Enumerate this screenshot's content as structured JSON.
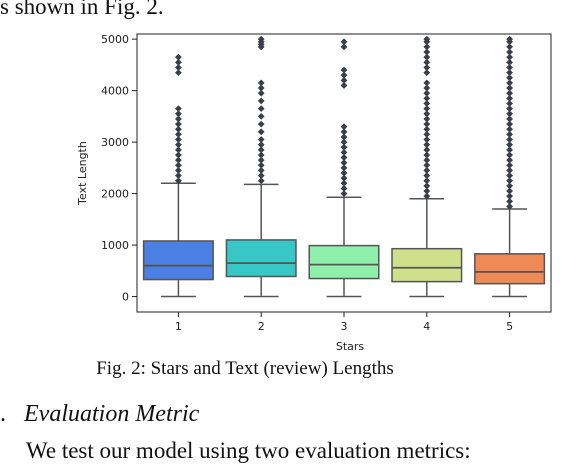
{
  "paper": {
    "top_text": "s shown in Fig. 2.",
    "caption": "Fig. 2: Stars and Text (review) Lengths",
    "section_number": ".",
    "section_title": "Evaluation Metric",
    "bottom_text": "We test our model using two evaluation metrics:"
  },
  "chart_data": {
    "type": "box",
    "xlabel": "Stars",
    "ylabel": "Text Length",
    "categories": [
      "1",
      "2",
      "3",
      "4",
      "5"
    ],
    "ylim": [
      -300,
      5100
    ],
    "yticks": [
      0,
      1000,
      2000,
      3000,
      4000,
      5000
    ],
    "grid": false,
    "colors": [
      "#4a7fe3",
      "#37c7c6",
      "#8ff0ac",
      "#cfe08c",
      "#ef8a56"
    ],
    "boxes": [
      {
        "whisker_low": 0,
        "q1": 330,
        "median": 600,
        "q3": 1080,
        "whisker_high": 2200,
        "outliers": [
          2250,
          2350,
          2450,
          2550,
          2650,
          2750,
          2850,
          2950,
          3050,
          3150,
          3250,
          3350,
          3450,
          3550,
          3650,
          4350,
          4450,
          4550,
          4650
        ]
      },
      {
        "whisker_low": 0,
        "q1": 390,
        "median": 650,
        "q3": 1100,
        "whisker_high": 2180,
        "outliers": [
          2250,
          2350,
          2450,
          2550,
          2650,
          2750,
          2850,
          2950,
          3050,
          3200,
          3350,
          3500,
          3650,
          3800,
          3950,
          4050,
          4150,
          4850,
          4900,
          4950,
          5000
        ]
      },
      {
        "whisker_low": 0,
        "q1": 350,
        "median": 620,
        "q3": 990,
        "whisker_high": 1930,
        "outliers": [
          2000,
          2100,
          2200,
          2300,
          2400,
          2500,
          2600,
          2700,
          2800,
          2900,
          3000,
          3100,
          3200,
          3300,
          4100,
          4200,
          4300,
          4400,
          4850,
          4950
        ]
      },
      {
        "whisker_low": 0,
        "q1": 290,
        "median": 560,
        "q3": 930,
        "whisker_high": 1900,
        "outliers": [
          1950,
          2050,
          2150,
          2250,
          2350,
          2450,
          2550,
          2650,
          2750,
          2850,
          2950,
          3050,
          3150,
          3250,
          3350,
          3450,
          3550,
          3650,
          3750,
          3850,
          3950,
          4050,
          4150,
          4350,
          4450,
          4550,
          4650,
          4750,
          4850,
          4950,
          5000
        ]
      },
      {
        "whisker_low": 0,
        "q1": 250,
        "median": 480,
        "q3": 830,
        "whisker_high": 1700,
        "outliers": [
          1750,
          1850,
          1950,
          2050,
          2150,
          2250,
          2350,
          2450,
          2550,
          2650,
          2750,
          2850,
          2950,
          3050,
          3150,
          3250,
          3350,
          3450,
          3550,
          3650,
          3750,
          3850,
          3950,
          4050,
          4150,
          4250,
          4350,
          4450,
          4550,
          4650,
          4750,
          4850,
          4950,
          5000
        ]
      }
    ]
  }
}
